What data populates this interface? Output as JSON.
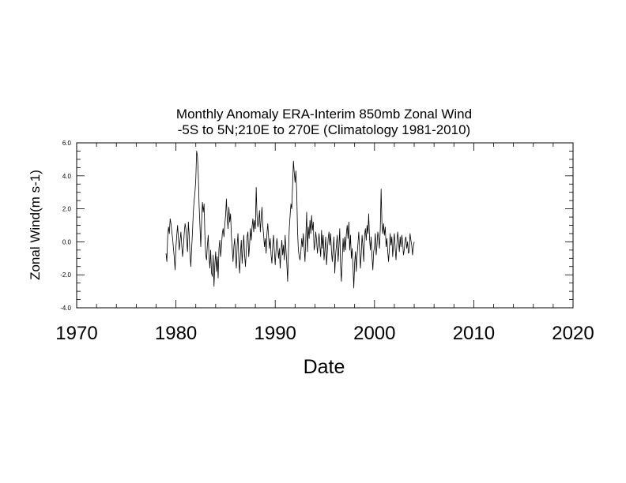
{
  "chart_data": {
    "type": "line",
    "title_line1": "Monthly Anomaly ERA-Interim 850mb  Zonal Wind",
    "title_line2": "-5S to 5N;210E to 270E (Climatology 1981-2010)",
    "xlabel": "Date",
    "ylabel": "Zonal Wind(m s-1)",
    "xlim": [
      1970,
      2020
    ],
    "ylim": [
      -4.0,
      6.0
    ],
    "x_ticks": [
      "1970",
      "1980",
      "1990",
      "2000",
      "2010",
      "2020"
    ],
    "y_ticks": [
      "-4.0",
      "-2.0",
      "0.0",
      "2.0",
      "4.0",
      "6.0"
    ],
    "grid": false,
    "legend": "none",
    "series": [
      {
        "x_start": 1979.0,
        "x_step": 0.083333,
        "values": [
          -0.7,
          -1.2,
          0.3,
          0.9,
          0.5,
          1.4,
          1.1,
          0.6,
          0.2,
          -0.4,
          -1.0,
          -1.7,
          -0.3,
          0.4,
          1.0,
          0.2,
          -0.5,
          0.1,
          0.6,
          -0.2,
          -0.9,
          -0.3,
          0.5,
          1.1,
          0.8,
          0.0,
          -0.6,
          1.2,
          0.4,
          -0.8,
          -1.5,
          -0.4,
          0.6,
          1.8,
          2.5,
          3.0,
          3.8,
          5.5,
          5.2,
          4.1,
          2.2,
          1.0,
          -0.3,
          1.2,
          2.4,
          1.8,
          2.3,
          0.4,
          -0.8,
          -1.1,
          -0.2,
          0.4,
          -0.9,
          -1.6,
          -0.5,
          -1.9,
          -2.1,
          -0.8,
          -2.7,
          -1.4,
          -0.6,
          -1.8,
          -0.9,
          -2.2,
          -0.4,
          0.1,
          -0.9,
          -0.3,
          0.5,
          0.8,
          0.3,
          1.0,
          1.6,
          2.6,
          1.4,
          0.8,
          2.1,
          1.2,
          1.7,
          0.4,
          -0.4,
          -1.2,
          -0.3,
          0.2,
          -0.9,
          -1.6,
          -0.2,
          0.5,
          -1.1,
          -1.9,
          -0.7,
          0.1,
          -1.3,
          -0.4,
          0.4,
          -0.8,
          -1.5,
          -0.6,
          0.3,
          0.6,
          -0.9,
          -0.2,
          0.8,
          0.1,
          0.9,
          1.4,
          0.6,
          1.3,
          0.8,
          3.3,
          1.6,
          0.9,
          1.2,
          1.9,
          0.6,
          1.4,
          2.1,
          1.0,
          0.4,
          -0.3,
          0.2,
          -0.7,
          0.5,
          1.1,
          0.3,
          -0.4,
          0.2,
          -0.8,
          -1.3,
          -0.2,
          0.4,
          -0.6,
          -1.4,
          -0.5,
          0.2,
          -0.3,
          -1.0,
          -0.4,
          -1.6,
          -0.6,
          0.1,
          -0.8,
          -0.2,
          -1.1,
          0.4,
          -0.5,
          -1.3,
          -2.4,
          -0.6,
          0.8,
          1.6,
          2.3,
          2.0,
          3.4,
          4.9,
          4.2,
          3.6,
          4.3,
          3.0,
          0.6,
          -0.5,
          -0.9,
          -1.1,
          -0.6,
          0.2,
          -0.3,
          0.5,
          -0.4,
          -1.2,
          0.3,
          1.8,
          -0.6,
          0.9,
          0.2,
          1.3,
          0.5,
          1.6,
          0.7,
          1.2,
          -0.5,
          -0.2,
          0.6,
          0.1,
          -0.7,
          -0.1,
          0.5,
          -0.3,
          -0.9,
          0.7,
          -0.4,
          0.4,
          -1.1,
          -0.5,
          0.3,
          -1.4,
          -0.6,
          0.2,
          0.6,
          -0.2,
          0.5,
          -0.6,
          -1.2,
          -0.4,
          0.3,
          -1.9,
          -0.8,
          -0.2,
          0.4,
          -1.2,
          -0.3,
          0.8,
          -1.5,
          -2.4,
          -1.1,
          0.2,
          -0.6,
          0.3,
          -0.5,
          0.5,
          1.0,
          0.2,
          1.2,
          -0.5,
          0.4,
          -1.0,
          -0.4,
          -1.5,
          -2.8,
          -1.3,
          -0.6,
          -1.8,
          -0.8,
          -0.1,
          0.6,
          -0.5,
          -1.6,
          -0.7,
          0.4,
          -0.3,
          -1.2,
          0.4,
          0.8,
          0.1,
          1.0,
          0.5,
          1.7,
          0.2,
          -0.5,
          0.3,
          -0.9,
          -1.7,
          -0.6,
          -0.3,
          0.5,
          -0.8,
          -0.2,
          0.6,
          0.2,
          -0.4,
          0.8,
          3.2,
          1.1,
          0.5,
          1.1,
          0.4,
          0.9,
          -0.3,
          0.2,
          -0.6,
          -1.2,
          -0.4,
          0.5,
          -0.2,
          0.3,
          -0.9,
          -0.1,
          0.5,
          -0.4,
          -1.1,
          -0.2,
          0.6,
          0.1,
          -0.6,
          0.3,
          -0.3,
          0.4,
          0.0,
          -0.8,
          -0.5,
          0.1,
          0.3,
          -0.4,
          0.0,
          -0.7,
          -0.6,
          0.5,
          0.1,
          -0.2,
          -0.8,
          -0.3,
          0.0
        ]
      }
    ]
  }
}
